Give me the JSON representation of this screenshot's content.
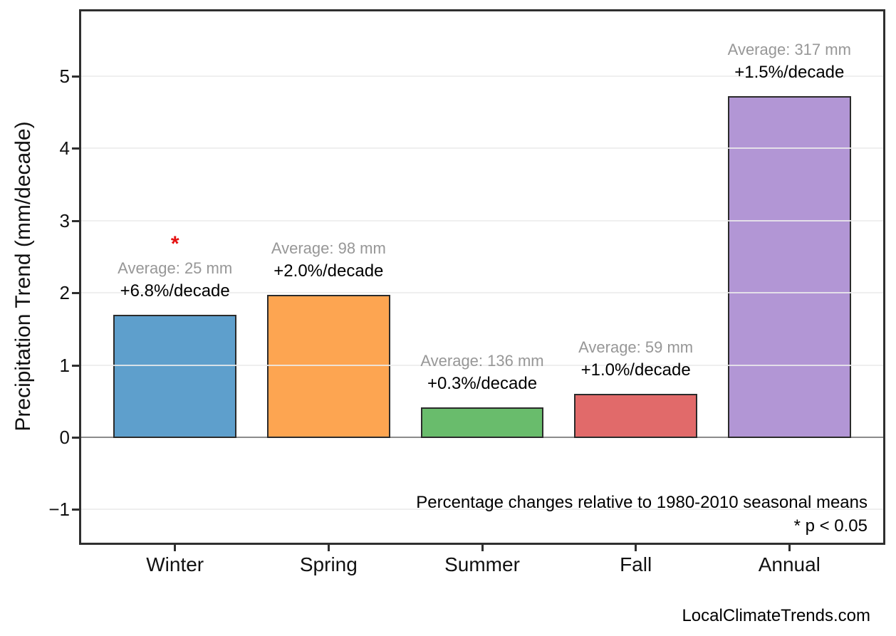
{
  "page": {
    "watermark": "LocalClimateTrends.com"
  },
  "chart_data": {
    "type": "bar",
    "title": "",
    "xlabel": "",
    "ylabel": "Precipitation Trend (mm/decade)",
    "categories": [
      "Winter",
      "Spring",
      "Summer",
      "Fall",
      "Annual"
    ],
    "values": [
      1.7,
      1.97,
      0.41,
      0.6,
      4.72
    ],
    "series": [
      {
        "name": "Precipitation Trend (mm/decade)",
        "values": [
          1.7,
          1.97,
          0.41,
          0.6,
          4.72
        ]
      }
    ],
    "bars": [
      {
        "category": "Winter",
        "value": 1.7,
        "color": "#5E9FCC",
        "average_mm": 25,
        "percent_per_decade": 6.8,
        "average_label": "Average: 25 mm",
        "trend_label": "+6.8%/decade",
        "significant": true
      },
      {
        "category": "Spring",
        "value": 1.97,
        "color": "#FDA551",
        "average_mm": 98,
        "percent_per_decade": 2.0,
        "average_label": "Average: 98 mm",
        "trend_label": "+2.0%/decade",
        "significant": false
      },
      {
        "category": "Summer",
        "value": 0.41,
        "color": "#69BC6C",
        "average_mm": 136,
        "percent_per_decade": 0.3,
        "average_label": "Average: 136 mm",
        "trend_label": "+0.3%/decade",
        "significant": false
      },
      {
        "category": "Fall",
        "value": 0.6,
        "color": "#E16A6A",
        "average_mm": 59,
        "percent_per_decade": 1.0,
        "average_label": "Average: 59 mm",
        "trend_label": "+1.0%/decade",
        "significant": false
      },
      {
        "category": "Annual",
        "value": 4.72,
        "color": "#B296D5",
        "average_mm": 317,
        "percent_per_decade": 1.5,
        "average_label": "Average: 317 mm",
        "trend_label": "+1.5%/decade",
        "significant": false
      }
    ],
    "yticks": [
      {
        "value": -1,
        "label": "−1"
      },
      {
        "value": 0,
        "label": "0"
      },
      {
        "value": 1,
        "label": "1"
      },
      {
        "value": 2,
        "label": "2"
      },
      {
        "value": 3,
        "label": "3"
      },
      {
        "value": 4,
        "label": "4"
      },
      {
        "value": 5,
        "label": "5"
      }
    ],
    "ylim": [
      -1.48,
      5.92
    ],
    "grid": true,
    "legend": "none",
    "annotation_colors": {
      "average": "#979797",
      "trend": "#000000"
    },
    "significance": {
      "marker": "*",
      "color": "#E51111"
    },
    "notes": [
      "Percentage changes relative to 1980-2010 seasonal means",
      "* p < 0.05"
    ]
  }
}
